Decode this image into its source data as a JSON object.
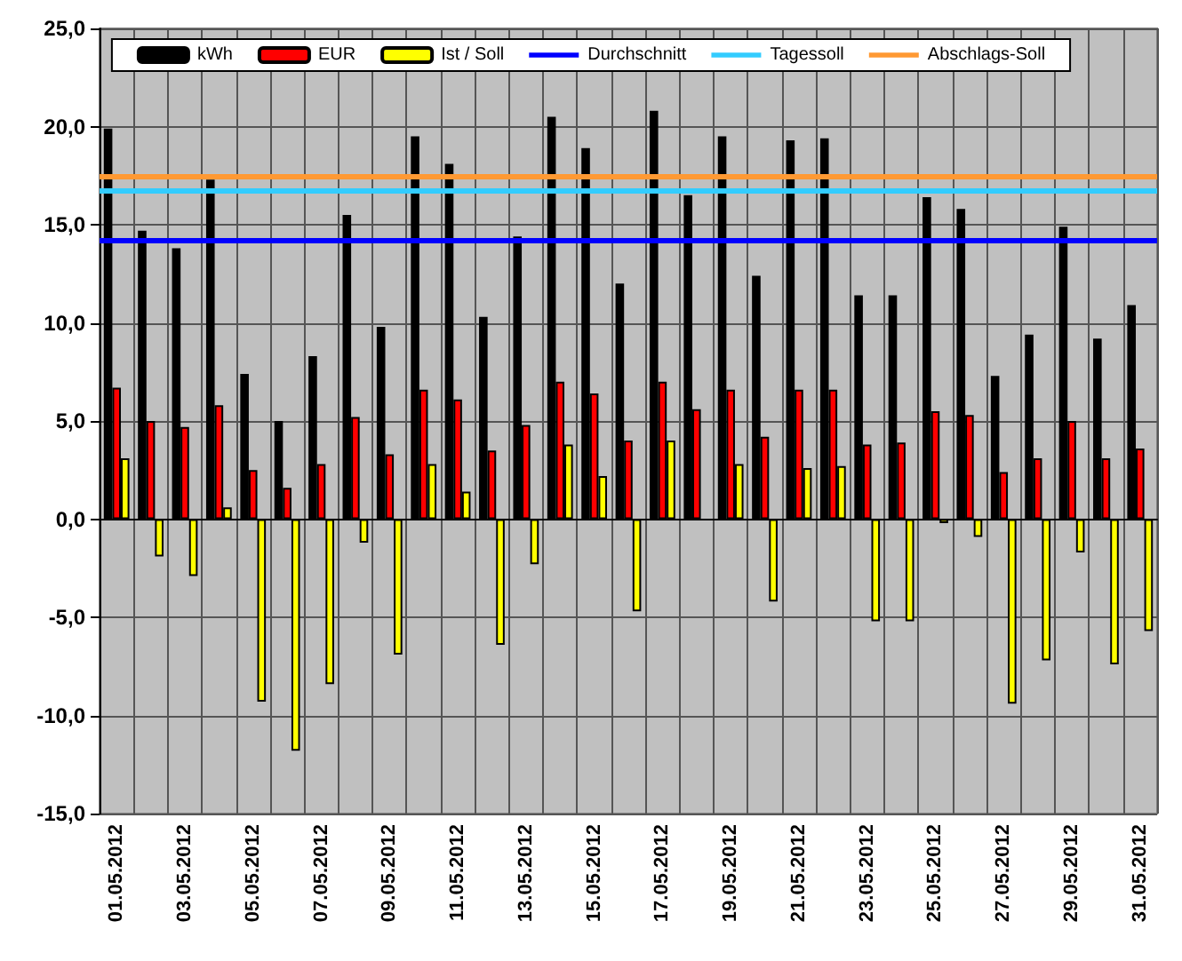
{
  "chart_data": {
    "type": "bar",
    "categories": [
      "01.05.2012",
      null,
      "03.05.2012",
      null,
      "05.05.2012",
      null,
      "07.05.2012",
      null,
      "09.05.2012",
      null,
      "11.05.2012",
      null,
      "13.05.2012",
      null,
      "15.05.2012",
      null,
      "17.05.2012",
      null,
      "19.05.2012",
      null,
      "21.05.2012",
      null,
      "23.05.2012",
      null,
      "25.05.2012",
      null,
      "27.05.2012",
      null,
      "29.05.2012",
      null,
      "31.05.2012"
    ],
    "series": [
      {
        "name": "kWh",
        "color": "#000000",
        "values": [
          19.9,
          14.7,
          13.8,
          17.3,
          7.4,
          5.0,
          8.3,
          15.5,
          9.8,
          19.5,
          18.1,
          10.3,
          14.4,
          20.5,
          18.9,
          12.0,
          20.8,
          16.5,
          19.5,
          12.4,
          19.3,
          19.4,
          11.4,
          11.4,
          16.4,
          15.8,
          7.3,
          9.4,
          14.9,
          9.2,
          10.9
        ]
      },
      {
        "name": "EUR",
        "color": "#ff0000",
        "values": [
          6.7,
          5.0,
          4.7,
          5.8,
          2.5,
          1.6,
          2.8,
          5.2,
          3.3,
          6.6,
          6.1,
          3.5,
          4.8,
          7.0,
          6.4,
          4.0,
          7.0,
          5.6,
          6.6,
          4.2,
          6.6,
          6.6,
          3.8,
          3.9,
          5.5,
          5.3,
          2.4,
          3.1,
          5.0,
          3.1,
          3.6
        ]
      },
      {
        "name": "Ist / Soll",
        "color": "#ffff00",
        "values": [
          3.1,
          -1.9,
          -2.9,
          0.6,
          -9.3,
          -11.8,
          -8.4,
          -1.2,
          -6.9,
          2.8,
          1.4,
          -6.4,
          -2.3,
          3.8,
          2.2,
          -4.7,
          4.0,
          0.0,
          2.8,
          -4.2,
          2.6,
          2.7,
          -5.2,
          -5.2,
          -0.2,
          -0.9,
          -9.4,
          -7.2,
          -1.7,
          -7.4,
          -5.7
        ]
      }
    ],
    "ref_lines": [
      {
        "axis": "y",
        "value": 14.2,
        "label": "Durchschnitt",
        "color": "#0000ff"
      },
      {
        "axis": "y",
        "value": 16.7,
        "label": "Tagessoll",
        "color": "#33ccff"
      },
      {
        "axis": "y",
        "value": 17.5,
        "label": "Abschlags-Soll",
        "color": "#ff9933"
      }
    ],
    "ylim": [
      -15,
      25
    ],
    "yticks": [
      {
        "value": -15,
        "label": "-15,0"
      },
      {
        "value": -10,
        "label": "-10,0"
      },
      {
        "value": -5,
        "label": "-5,0"
      },
      {
        "value": 0,
        "label": "0,0"
      },
      {
        "value": 5,
        "label": "5,0"
      },
      {
        "value": 10,
        "label": "10,0"
      },
      {
        "value": 15,
        "label": "15,0"
      },
      {
        "value": 20,
        "label": "20,0"
      },
      {
        "value": 25,
        "label": "25,0"
      }
    ],
    "grid": true,
    "legend": "top"
  }
}
